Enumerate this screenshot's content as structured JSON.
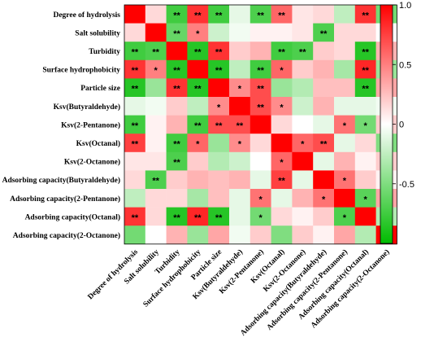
{
  "chart_data": {
    "type": "heatmap",
    "title": "",
    "variables": [
      "Degree of hydrolysis",
      "Salt solubility",
      "Turbidity",
      "Surface hydrophobicity",
      "Particle size",
      "Ksv(Butyraldehyde)",
      "Ksv(2-Pentanone)",
      "Ksv(Octanal)",
      "Ksv(2-Octanone)",
      "Adsorbing capacity(Butyraldehyde)",
      "Adsorbing capacity(2-Pentanone)",
      "Adsorbing capacity(Octanal)",
      "Adsorbing capacity(2-Octanone)"
    ],
    "values": [
      [
        1.0,
        0.15,
        -0.75,
        0.8,
        -0.75,
        -0.1,
        -0.7,
        0.6,
        0.1,
        0.15,
        -0.25,
        0.8,
        -0.55
      ],
      [
        0.15,
        1.0,
        -0.6,
        0.5,
        -0.2,
        -0.05,
        0.05,
        0.05,
        0.1,
        -0.7,
        0.15,
        0.15,
        0.0
      ],
      [
        -0.75,
        -0.7,
        1.0,
        -0.85,
        0.8,
        0.2,
        0.3,
        -0.75,
        -0.7,
        0.2,
        0.15,
        -0.85,
        0.3
      ],
      [
        0.8,
        0.5,
        -0.85,
        1.0,
        -0.85,
        -0.25,
        -0.75,
        0.6,
        0.2,
        0.3,
        -0.35,
        0.85,
        -0.4
      ],
      [
        -0.85,
        -0.4,
        0.8,
        -0.85,
        1.0,
        0.45,
        0.7,
        -0.4,
        -0.3,
        0.25,
        0.25,
        -0.85,
        0.35
      ],
      [
        -0.1,
        -0.05,
        0.2,
        -0.25,
        0.45,
        1.0,
        0.7,
        0.45,
        -0.2,
        0.3,
        -0.1,
        -0.1,
        -0.05
      ],
      [
        -0.75,
        0.05,
        0.3,
        -0.75,
        0.7,
        0.7,
        1.0,
        0.15,
        0.0,
        -0.1,
        0.55,
        -0.55,
        0.2
      ],
      [
        0.75,
        0.05,
        -0.75,
        0.6,
        -0.4,
        0.45,
        0.15,
        1.0,
        0.6,
        0.7,
        -0.1,
        0.15,
        -0.5
      ],
      [
        0.1,
        0.1,
        -0.7,
        0.2,
        -0.3,
        -0.2,
        0.0,
        0.6,
        1.0,
        -0.1,
        0.3,
        0.05,
        0.2
      ],
      [
        0.15,
        -0.7,
        0.2,
        0.3,
        0.25,
        0.3,
        -0.1,
        0.75,
        -0.1,
        1.0,
        0.55,
        0.2,
        0.05
      ],
      [
        -0.25,
        0.15,
        0.15,
        -0.35,
        0.25,
        -0.1,
        0.55,
        -0.1,
        0.3,
        0.55,
        1.0,
        -0.65,
        0.35
      ],
      [
        0.8,
        0.15,
        -0.85,
        0.85,
        -0.85,
        -0.1,
        -0.55,
        0.15,
        0.05,
        0.2,
        -0.7,
        1.0,
        -0.3
      ],
      [
        -0.55,
        0.0,
        0.3,
        -0.4,
        0.35,
        -0.05,
        0.2,
        -0.5,
        0.2,
        0.05,
        0.35,
        -0.3,
        1.0
      ]
    ],
    "significance": [
      [
        "",
        "",
        "**",
        "**",
        "**",
        "",
        "**",
        "**",
        "",
        "",
        "",
        "**",
        ""
      ],
      [
        "",
        "",
        "**",
        "*",
        "",
        "",
        "",
        "",
        "",
        "**",
        "",
        "",
        ""
      ],
      [
        "**",
        "**",
        "",
        "**",
        "**",
        "",
        "",
        "**",
        "**",
        "",
        "",
        "**",
        ""
      ],
      [
        "**",
        "*",
        "**",
        "",
        "**",
        "",
        "**",
        "*",
        "",
        "",
        "",
        "**",
        ""
      ],
      [
        "**",
        "",
        "**",
        "**",
        "",
        "*",
        "**",
        "",
        "",
        "",
        "",
        "**",
        ""
      ],
      [
        "",
        "",
        "",
        "",
        "*",
        "",
        "**",
        "*",
        "",
        "",
        "",
        "",
        ""
      ],
      [
        "**",
        "",
        "",
        "**",
        "**",
        "**",
        "",
        "",
        "",
        "",
        "*",
        "*",
        ""
      ],
      [
        "**",
        "",
        "**",
        "*",
        "",
        "*",
        "",
        "",
        "*",
        "**",
        "",
        "",
        ""
      ],
      [
        "",
        "",
        "**",
        "",
        "",
        "",
        "",
        "*",
        "",
        "",
        "",
        "",
        ""
      ],
      [
        "",
        "**",
        "",
        "",
        "",
        "",
        "",
        "**",
        "",
        "",
        "*",
        "",
        ""
      ],
      [
        "",
        "",
        "",
        "",
        "",
        "",
        "*",
        "",
        "",
        "*",
        "",
        "*",
        ""
      ],
      [
        "**",
        "",
        "**",
        "**",
        "**",
        "",
        "*",
        "",
        "",
        "",
        "*",
        "",
        ""
      ],
      [
        "",
        "",
        "",
        "",
        "",
        "",
        "",
        "",
        "",
        "",
        "",
        "",
        ""
      ]
    ],
    "colorbar": {
      "ticks": [
        "1.0",
        "0.5",
        "0",
        "-0.5"
      ],
      "tick_values": [
        1.0,
        0.5,
        0,
        -0.5
      ],
      "range": [
        -1,
        1
      ],
      "colors": {
        "max": "#ff0000",
        "mid": "#ffffff",
        "min": "#00bb00"
      }
    }
  }
}
